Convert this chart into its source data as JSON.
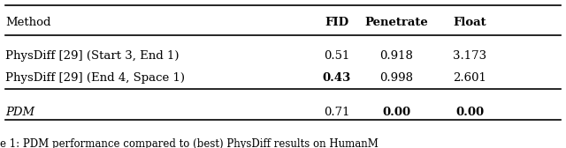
{
  "col_headers": [
    "Method",
    "FID",
    "Penetrate",
    "Float"
  ],
  "col_headers_bold": [
    false,
    true,
    true,
    true
  ],
  "rows": [
    {
      "method": "PhysDiff [29] (Start 3, End 1)",
      "method_bold": false,
      "method_italic": false,
      "fid": "0.51",
      "fid_bold": false,
      "penetrate": "0.918",
      "penetrate_bold": false,
      "float": "3.173",
      "float_bold": false,
      "group": 0
    },
    {
      "method": "PhysDiff [29] (End 4, Space 1)",
      "method_bold": false,
      "method_italic": false,
      "fid": "0.43",
      "fid_bold": true,
      "penetrate": "0.998",
      "penetrate_bold": false,
      "float": "2.601",
      "float_bold": false,
      "group": 0
    },
    {
      "method": "PDM",
      "method_bold": false,
      "method_italic": true,
      "fid": "0.71",
      "fid_bold": false,
      "penetrate": "0.00",
      "penetrate_bold": true,
      "float": "0.00",
      "float_bold": true,
      "group": 1
    }
  ],
  "caption": "e 1: PDM performance compared to (best) PhysDiff results on HumanM",
  "background_color": "#ffffff",
  "line_color": "#000000",
  "text_color": "#000000",
  "font_size": 9.5,
  "caption_font_size": 8.5
}
